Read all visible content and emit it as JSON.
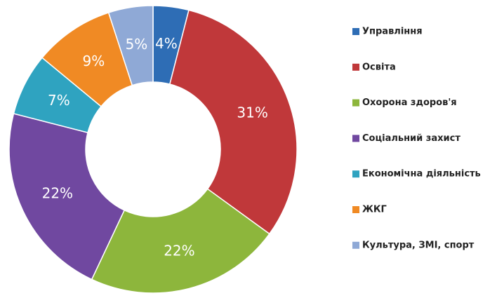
{
  "chart_data": {
    "type": "donut",
    "categories": [
      "Управління",
      "Освіта",
      "Охорона здоров'я",
      "Соціальний захист",
      "Економічна діяльність",
      "ЖКГ",
      "Культура, ЗМІ, спорт"
    ],
    "values": [
      4,
      31,
      22,
      22,
      7,
      9,
      5
    ],
    "value_labels": [
      "4%",
      "31%",
      "22%",
      "22%",
      "7%",
      "9%",
      "5%"
    ],
    "colors": [
      "#2e6db5",
      "#c0383a",
      "#8db63c",
      "#7048a0",
      "#2fa3c0",
      "#f08a24",
      "#8fa9d6"
    ],
    "legend": "right"
  }
}
